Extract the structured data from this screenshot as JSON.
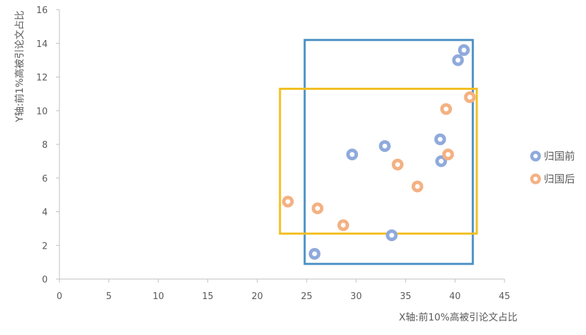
{
  "chart_data": {
    "type": "scatter",
    "xlabel": "X轴:前10%高被引论文占比",
    "ylabel": "Y轴:前1%高被引论文占比",
    "xlim": [
      0,
      45
    ],
    "ylim": [
      0,
      16
    ],
    "xticks": [
      0,
      5,
      10,
      15,
      20,
      25,
      30,
      35,
      40,
      45
    ],
    "yticks": [
      0,
      2,
      4,
      6,
      8,
      10,
      12,
      14,
      16
    ],
    "grid": false,
    "legend_position": "right",
    "series": [
      {
        "name": "归国前",
        "color": "#8FAADC",
        "points": [
          {
            "x": 25.8,
            "y": 1.5
          },
          {
            "x": 29.6,
            "y": 7.4
          },
          {
            "x": 32.9,
            "y": 7.9
          },
          {
            "x": 33.6,
            "y": 2.6
          },
          {
            "x": 38.5,
            "y": 8.3
          },
          {
            "x": 38.6,
            "y": 7.0
          },
          {
            "x": 40.3,
            "y": 13.0
          },
          {
            "x": 40.9,
            "y": 13.6
          }
        ]
      },
      {
        "name": "归国后",
        "color": "#F4B183",
        "points": [
          {
            "x": 23.1,
            "y": 4.6
          },
          {
            "x": 26.1,
            "y": 4.2
          },
          {
            "x": 28.7,
            "y": 3.2
          },
          {
            "x": 34.2,
            "y": 6.8
          },
          {
            "x": 36.2,
            "y": 5.5
          },
          {
            "x": 39.1,
            "y": 10.1
          },
          {
            "x": 39.3,
            "y": 7.4
          },
          {
            "x": 41.5,
            "y": 10.8
          }
        ]
      }
    ],
    "highlight_boxes": [
      {
        "color": "#4A8FC4",
        "x_range": [
          24.8,
          41.8
        ],
        "y_range": [
          0.9,
          14.2
        ]
      },
      {
        "color": "#F2BE1E",
        "x_range": [
          22.3,
          42.2
        ],
        "y_range": [
          2.7,
          11.3
        ]
      }
    ]
  }
}
